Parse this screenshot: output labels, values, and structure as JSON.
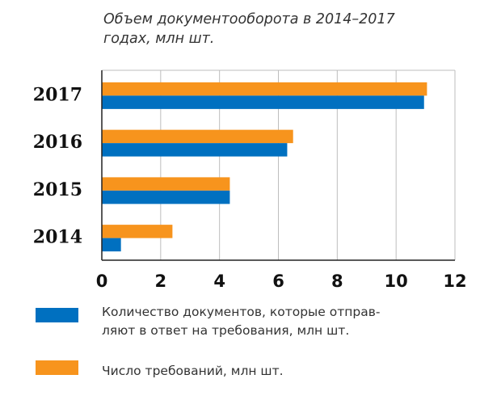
{
  "chart_data": {
    "type": "bar",
    "orientation": "horizontal",
    "title_lines": [
      "Объем документооборота в 2014–2017",
      "годах, млн шт."
    ],
    "categories": [
      "2014",
      "2015",
      "2016",
      "2017"
    ],
    "series": [
      {
        "name_lines": [
          "Количество документов, которые отправ-",
          "ляют в ответ на требования, млн шт."
        ],
        "color": "#0070c0",
        "values": [
          0.65,
          4.35,
          6.3,
          10.95
        ]
      },
      {
        "name_lines": [
          "Число требований, млн шт."
        ],
        "color": "#f7941d",
        "values": [
          2.4,
          4.35,
          6.5,
          11.05
        ]
      }
    ],
    "xlim": [
      0,
      12
    ],
    "xticks": [
      "0",
      "2",
      "4",
      "6",
      "8",
      "10",
      "12"
    ],
    "grid": true,
    "legend_position": "bottom"
  }
}
